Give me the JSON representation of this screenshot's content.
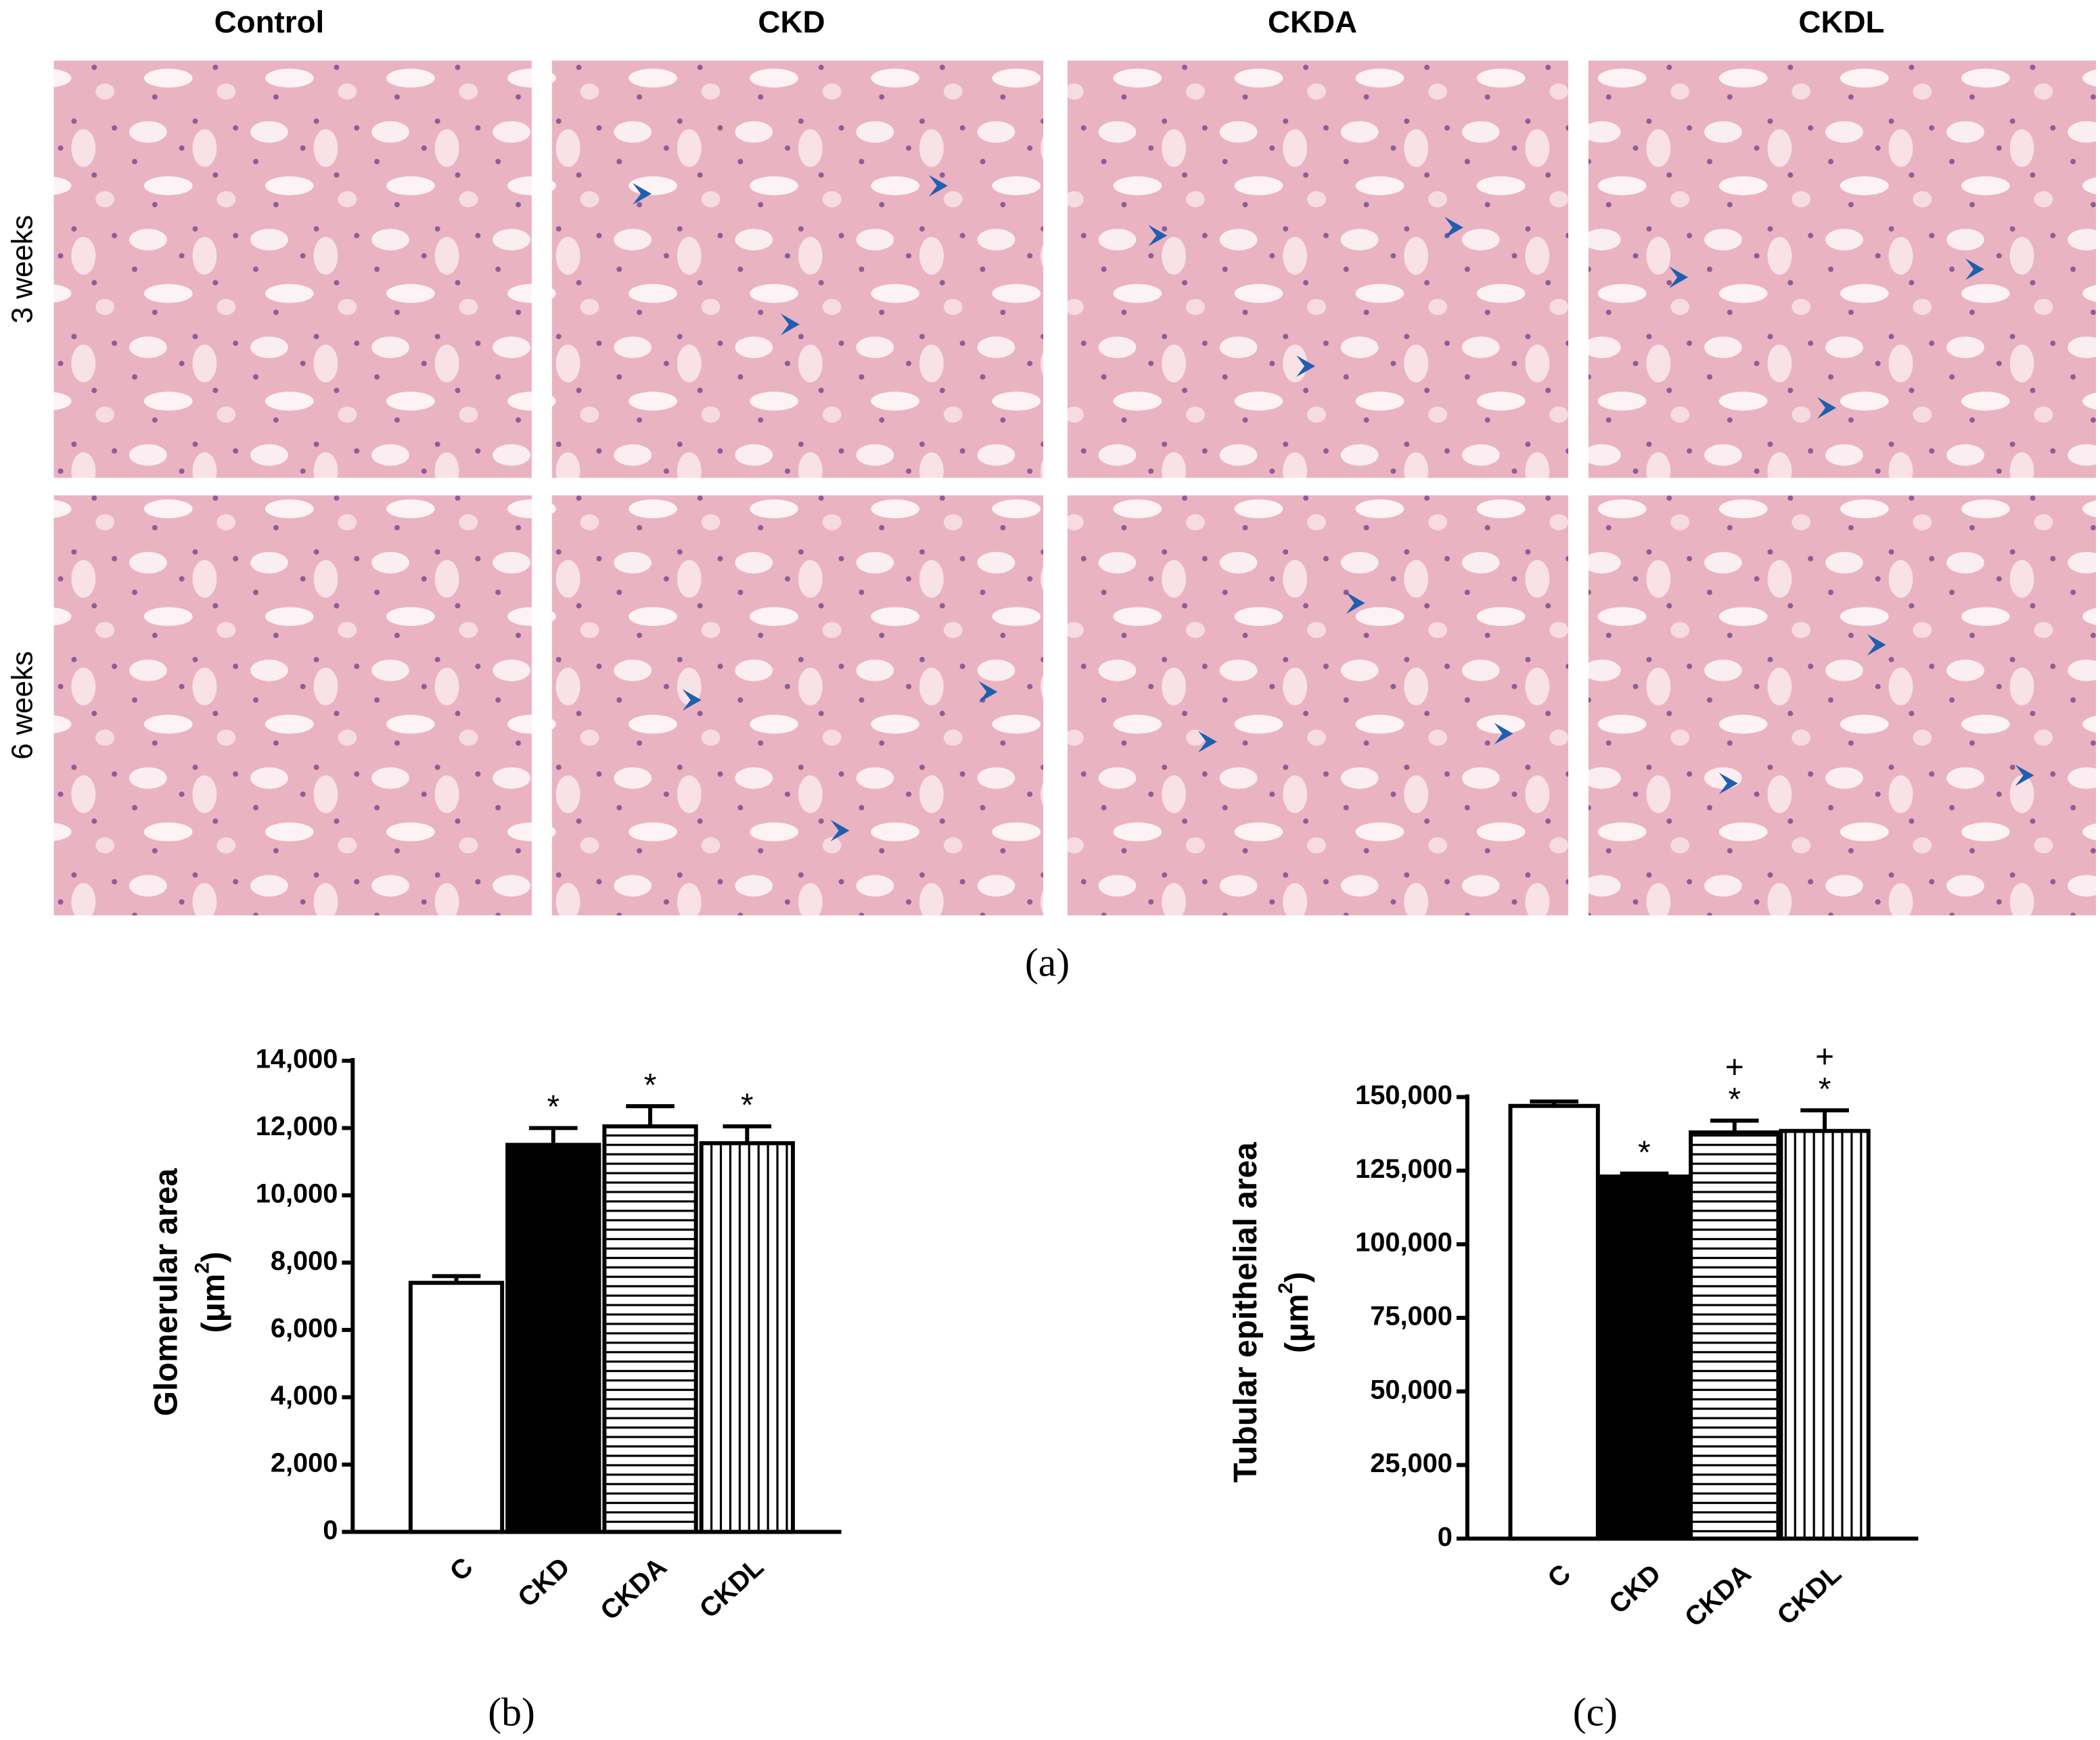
{
  "panel_a": {
    "columns": [
      "Control",
      "CKD",
      "CKDA",
      "CKDL"
    ],
    "rows": [
      "3 weeks",
      "6 weeks"
    ],
    "label": "(a)"
  },
  "chart_data": [
    {
      "type": "bar",
      "panel_label": "(b)",
      "ylabel": "Glomerular area",
      "yunit": [
        "(μm",
        "2",
        ")"
      ],
      "categories": [
        "C",
        "CKD",
        "CKDA",
        "CKDL"
      ],
      "values": [
        7400,
        11500,
        12050,
        11550
      ],
      "errors": [
        200,
        500,
        600,
        500
      ],
      "fills": [
        "white",
        "black",
        "hstripes",
        "vstripes"
      ],
      "significance": [
        [],
        [
          "*"
        ],
        [
          "*"
        ],
        [
          "*"
        ]
      ],
      "ylim": [
        0,
        14000
      ],
      "yticks": [
        0,
        {
          "value": 2000,
          "label": "2,000"
        },
        {
          "value": 4000,
          "label": "4,000"
        },
        {
          "value": 6000,
          "label": "6,000"
        },
        {
          "value": 8000,
          "label": "8,000"
        },
        {
          "value": 10000,
          "label": "10,000"
        },
        {
          "value": 12000,
          "label": "12,000"
        },
        {
          "value": 14000,
          "label": "14,000"
        }
      ]
    },
    {
      "type": "bar",
      "panel_label": "(c)",
      "ylabel": "Tubular epithelial area",
      "yunit": [
        "(μm",
        "2",
        ")"
      ],
      "categories": [
        "C",
        "CKD",
        "CKDA",
        "CKDL"
      ],
      "values": [
        147000,
        123000,
        138000,
        138500
      ],
      "errors": [
        1500,
        1000,
        4000,
        7000
      ],
      "fills": [
        "white",
        "black",
        "hstripes",
        "vstripes"
      ],
      "significance": [
        [],
        [
          "*"
        ],
        [
          "+",
          "*"
        ],
        [
          "+",
          "*"
        ]
      ],
      "ylim": [
        0,
        150000
      ],
      "yticks": [
        0,
        {
          "value": 25000,
          "label": "25,000"
        },
        {
          "value": 50000,
          "label": "50,000"
        },
        {
          "value": 75000,
          "label": "75,000"
        },
        {
          "value": 100000,
          "label": "100,000"
        },
        {
          "value": 125000,
          "label": "125,000"
        },
        {
          "value": 150000,
          "label": "150,000"
        }
      ]
    }
  ]
}
